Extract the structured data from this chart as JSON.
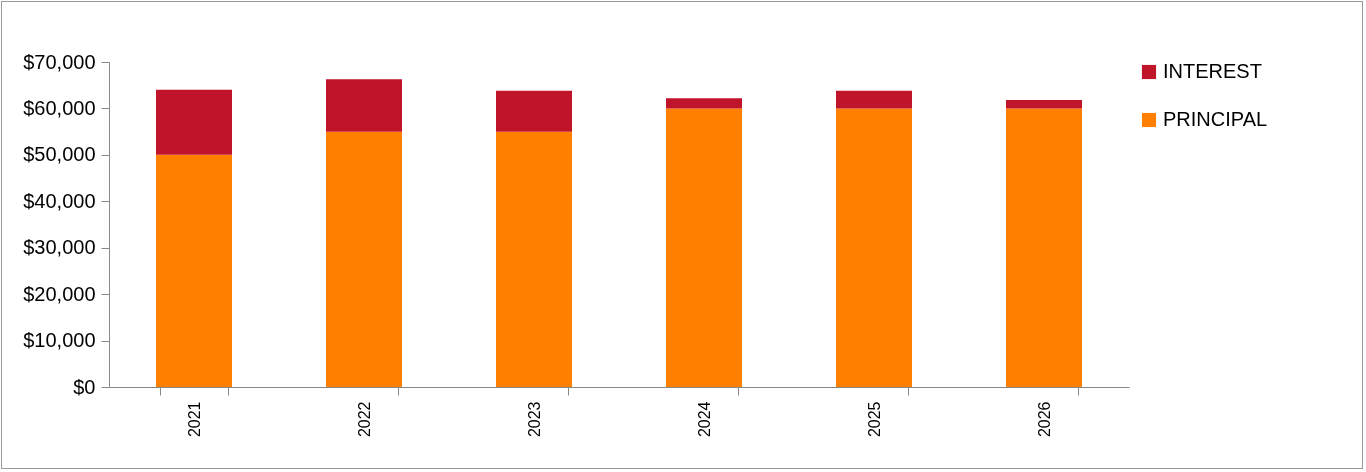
{
  "chart_data": {
    "type": "bar",
    "stacked": true,
    "categories": [
      "2021",
      "2022",
      "2023",
      "2024",
      "2025",
      "2026"
    ],
    "series": [
      {
        "name": "PRINCIPAL",
        "color": "#ff8000",
        "values": [
          50000,
          55000,
          55000,
          60000,
          60000,
          60000
        ]
      },
      {
        "name": "INTEREST",
        "color": "#c0142a",
        "values": [
          14000,
          11300,
          8800,
          2200,
          3800,
          1800
        ]
      }
    ],
    "ylim": [
      0,
      70000
    ],
    "yticks": [
      {
        "value": 0,
        "label": "$0"
      },
      {
        "value": 10000,
        "label": "$10,000"
      },
      {
        "value": 20000,
        "label": "$20,000"
      },
      {
        "value": 30000,
        "label": "$30,000"
      },
      {
        "value": 40000,
        "label": "$40,000"
      },
      {
        "value": 50000,
        "label": "$50,000"
      },
      {
        "value": 60000,
        "label": "$60,000"
      },
      {
        "value": 70000,
        "label": "$70,000"
      }
    ],
    "grid": false,
    "legend": "top right"
  }
}
